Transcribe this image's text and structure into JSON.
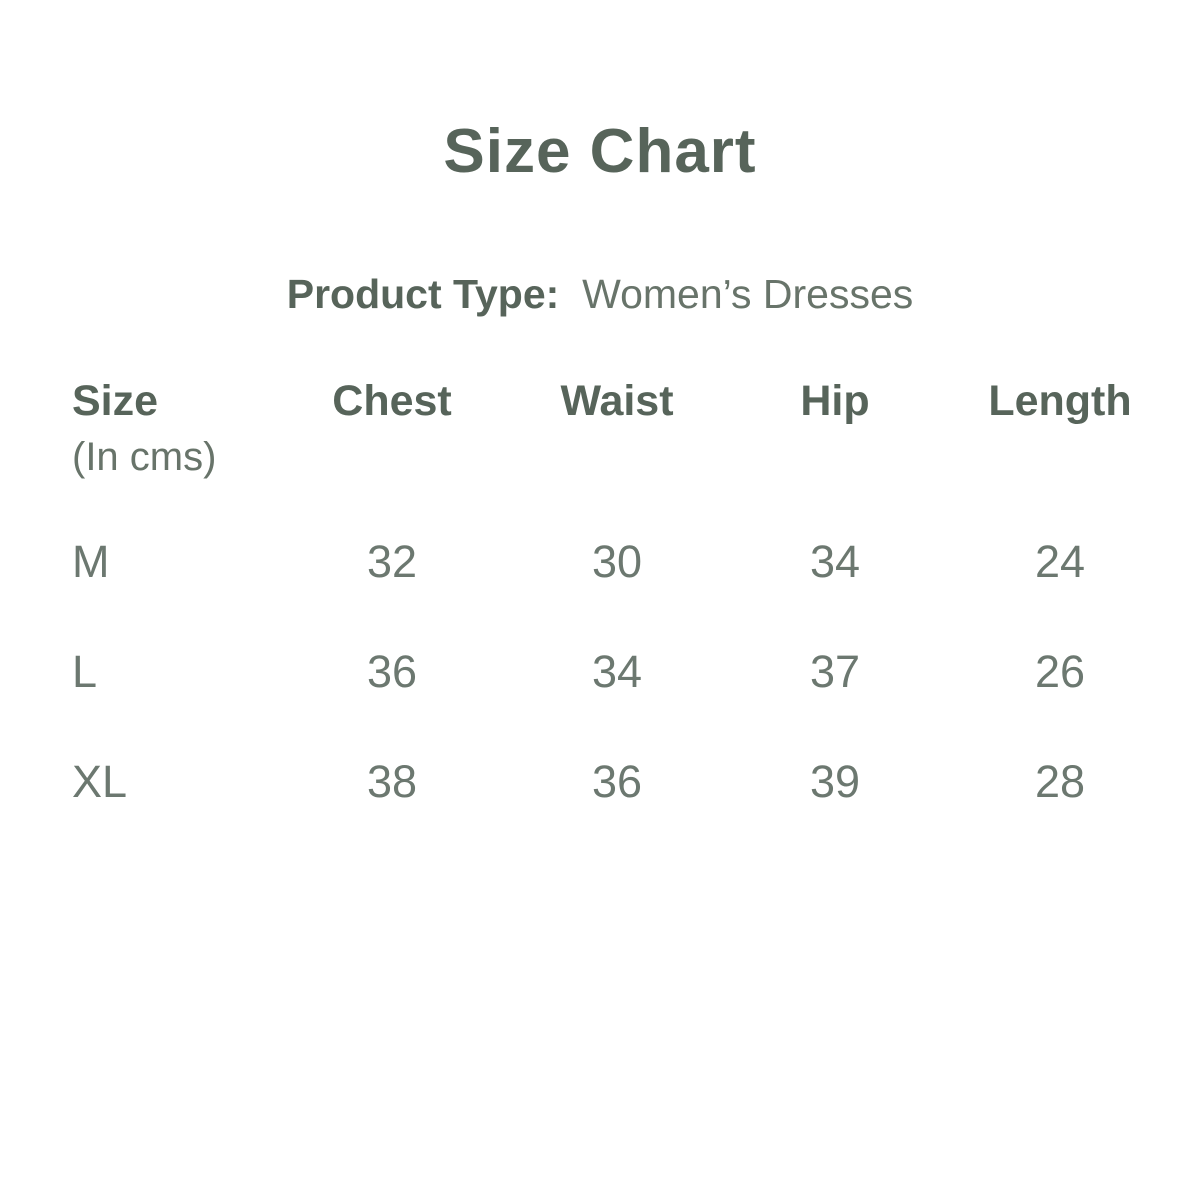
{
  "page": {
    "title": "Size Chart",
    "product_type": {
      "label": "Product Type:",
      "value": "Women’s Dresses"
    }
  },
  "table": {
    "columns": [
      {
        "label": "Size",
        "sub": "(In cms)"
      },
      {
        "label": "Chest"
      },
      {
        "label": "Waist"
      },
      {
        "label": "Hip"
      },
      {
        "label": "Length"
      }
    ],
    "rows": [
      {
        "size": "M",
        "chest": "32",
        "waist": "30",
        "hip": "34",
        "length": "24"
      },
      {
        "size": "L",
        "chest": "36",
        "waist": "34",
        "hip": "37",
        "length": "26"
      },
      {
        "size": "XL",
        "chest": "38",
        "waist": "36",
        "hip": "39",
        "length": "28"
      }
    ]
  },
  "colors": {
    "background": "#ffffff",
    "text_primary": "#57645A",
    "text_secondary": "#6C7870"
  }
}
